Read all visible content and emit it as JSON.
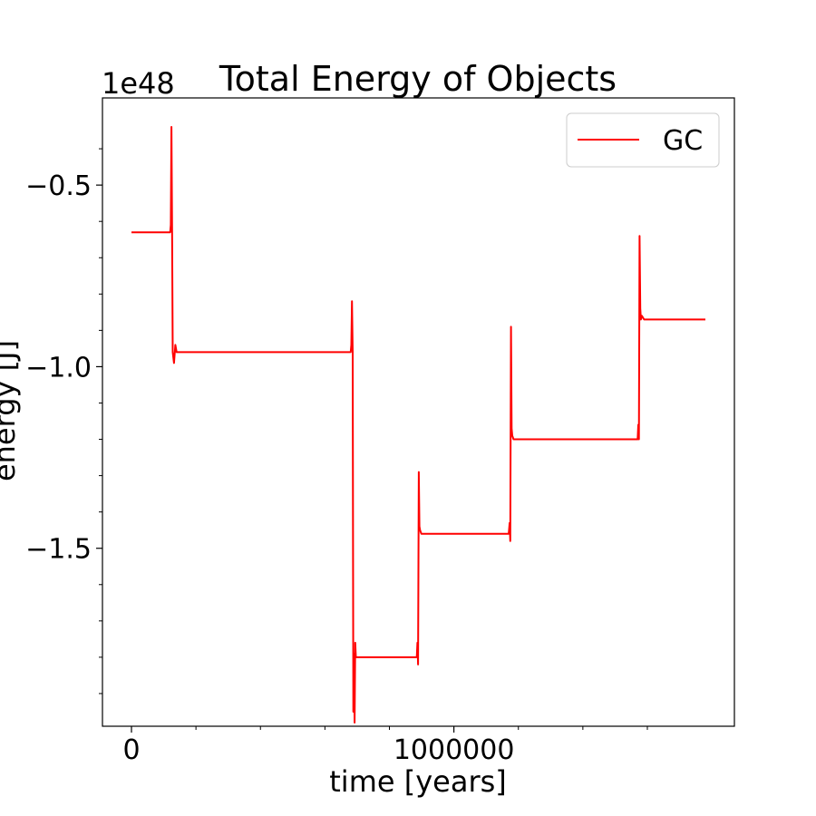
{
  "chart_data": {
    "type": "line",
    "title": "Total Energy of Objects",
    "xlabel": "time [years]",
    "ylabel": "energy [J]",
    "y_offset_label": "1e48",
    "xlim": [
      -90000,
      1870000
    ],
    "ylim": [
      -1.99,
      -0.26
    ],
    "x_ticks": [
      0,
      1000000
    ],
    "x_tick_labels": [
      "0",
      "1000000"
    ],
    "x_minor_ticks": [
      200000,
      400000,
      600000,
      800000,
      1200000,
      1400000,
      1600000
    ],
    "y_ticks": [
      -0.5,
      -1.0,
      -1.5
    ],
    "y_tick_labels": [
      "−0.5",
      "−1.0",
      "−1.5"
    ],
    "y_minor_ticks": [
      -0.4,
      -0.6,
      -0.7,
      -0.8,
      -0.9,
      -1.1,
      -1.2,
      -1.3,
      -1.4,
      -1.6,
      -1.7,
      -1.8,
      -1.9
    ],
    "legend_position": "top-right",
    "grid": false,
    "series": [
      {
        "name": "GC",
        "color": "#ff0000",
        "x": [
          0,
          120000,
          122000,
          124000,
          126000,
          128000,
          132000,
          136000,
          140000,
          680000,
          682000,
          684000,
          686000,
          688000,
          690000,
          692000,
          694000,
          696000,
          700000,
          705000,
          885000,
          887000,
          889000,
          891000,
          893000,
          895000,
          899000,
          905000,
          1170000,
          1173000,
          1175000,
          1177000,
          1179000,
          1181000,
          1185000,
          1190000,
          1570000,
          1572000,
          1574000,
          1576000,
          1578000,
          1580000,
          1583000,
          1590000,
          1780000
        ],
        "y": [
          -0.63,
          -0.63,
          -0.61,
          -0.34,
          -0.62,
          -0.96,
          -0.99,
          -0.94,
          -0.96,
          -0.96,
          -0.94,
          -0.82,
          -0.96,
          -1.95,
          -1.79,
          -1.98,
          -1.76,
          -1.8,
          -1.8,
          -1.8,
          -1.8,
          -1.76,
          -1.82,
          -1.29,
          -1.44,
          -1.45,
          -1.46,
          -1.46,
          -1.46,
          -1.43,
          -1.48,
          -0.89,
          -1.17,
          -1.19,
          -1.2,
          -1.2,
          -1.2,
          -1.16,
          -1.2,
          -0.64,
          -0.84,
          -0.87,
          -0.86,
          -0.87,
          -0.87
        ]
      }
    ]
  }
}
